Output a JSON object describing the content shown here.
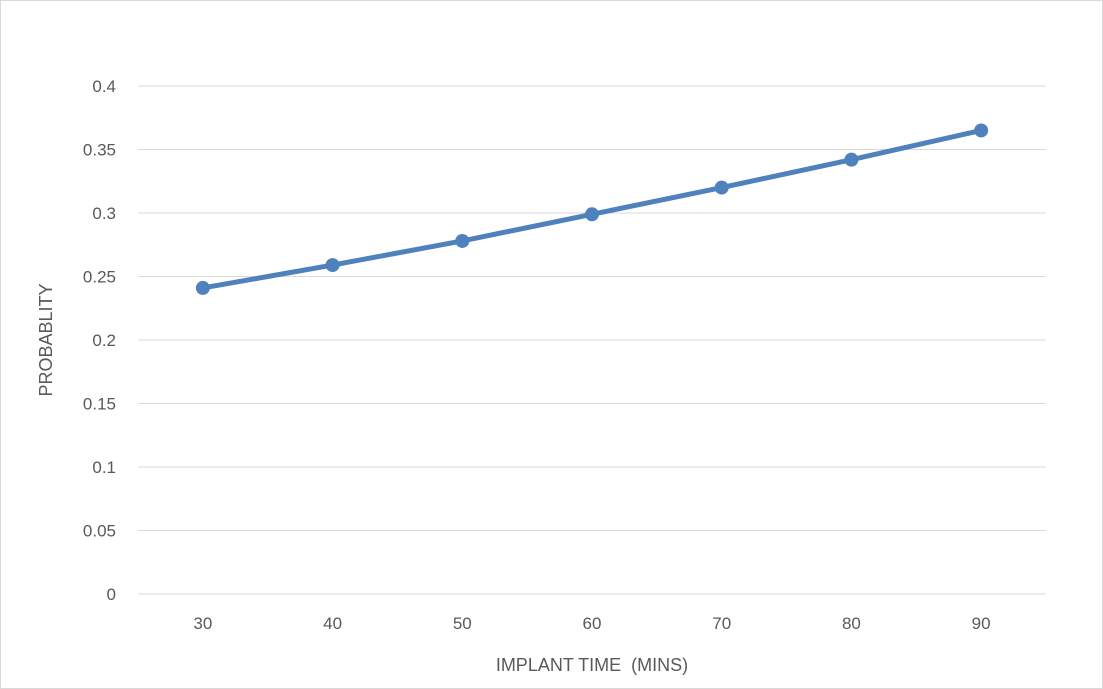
{
  "chart_data": {
    "type": "line",
    "title": "",
    "xlabel": "IMPLANT TIME  (MINS)",
    "ylabel": "PROBABLITY",
    "categories": [
      "30",
      "40",
      "50",
      "60",
      "70",
      "80",
      "90"
    ],
    "series": [
      {
        "values": [
          0.241,
          0.259,
          0.278,
          0.299,
          0.32,
          0.342,
          0.365
        ],
        "color": "#4f81bd"
      }
    ],
    "ylim": [
      0,
      0.4
    ],
    "yticks": [
      "0",
      "0.05",
      "0.1",
      "0.15",
      "0.2",
      "0.25",
      "0.3",
      "0.35",
      "0.4"
    ],
    "grid": true,
    "legend": "none",
    "colors": {
      "line": "#4f81bd",
      "grid": "#d9d9d9",
      "text": "#595959"
    }
  }
}
